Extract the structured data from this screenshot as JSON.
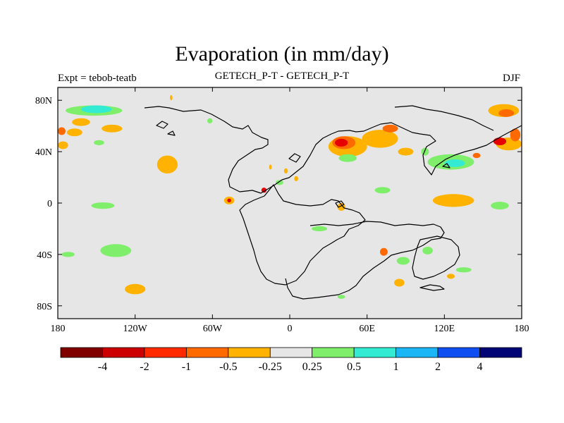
{
  "title": "Evaporation (in mm/day)",
  "subtitle_left": "Expt = tebob-teatb",
  "subtitle_center": "GETECH_P-T - GETECH_P-T",
  "subtitle_right": "DJF",
  "map": {
    "lon_range": [
      -180,
      180
    ],
    "lat_range": [
      -90,
      90
    ],
    "background_color": "#e6e6e6",
    "x_ticks": [
      {
        "value": -180,
        "label": "180"
      },
      {
        "value": -120,
        "label": "120W"
      },
      {
        "value": -60,
        "label": "60W"
      },
      {
        "value": 0,
        "label": "0"
      },
      {
        "value": 60,
        "label": "60E"
      },
      {
        "value": 120,
        "label": "120E"
      },
      {
        "value": 180,
        "label": "180"
      }
    ],
    "y_ticks": [
      {
        "value": 80,
        "label": "80N"
      },
      {
        "value": 40,
        "label": "40N"
      },
      {
        "value": 0,
        "label": "0"
      },
      {
        "value": -40,
        "label": "40S"
      },
      {
        "value": -80,
        "label": "80S"
      }
    ],
    "anomalies": [
      {
        "lon": -152,
        "lat": 72,
        "rx": 22,
        "ry": 4,
        "color": "#7fee6a"
      },
      {
        "lon": -150,
        "lat": 73,
        "rx": 12,
        "ry": 3,
        "color": "#33ebd2"
      },
      {
        "lon": -162,
        "lat": 63,
        "rx": 7,
        "ry": 3,
        "color": "#ffb300"
      },
      {
        "lon": -138,
        "lat": 58,
        "rx": 8,
        "ry": 3,
        "color": "#ffb300"
      },
      {
        "lon": -177,
        "lat": 56,
        "rx": 3,
        "ry": 3,
        "color": "#ff6a00"
      },
      {
        "lon": -167,
        "lat": 55,
        "rx": 6,
        "ry": 3,
        "color": "#ffb300"
      },
      {
        "lon": -148,
        "lat": 47,
        "rx": 4,
        "ry": 2,
        "color": "#7fee6a"
      },
      {
        "lon": -176,
        "lat": 45,
        "rx": 4,
        "ry": 3,
        "color": "#ffb300"
      },
      {
        "lon": -95,
        "lat": 30,
        "rx": 8,
        "ry": 7,
        "color": "#ffb300"
      },
      {
        "lon": -62,
        "lat": 64,
        "rx": 2,
        "ry": 2,
        "color": "#7fee6a"
      },
      {
        "lon": -92,
        "lat": 82,
        "rx": 1,
        "ry": 2,
        "color": "#ffb300"
      },
      {
        "lon": -47,
        "lat": 2,
        "rx": 4,
        "ry": 3,
        "color": "#ffb300"
      },
      {
        "lon": -47,
        "lat": 2,
        "rx": 1.5,
        "ry": 1.5,
        "color": "#e60000"
      },
      {
        "lon": -20,
        "lat": 10,
        "rx": 2,
        "ry": 2,
        "color": "#e60000"
      },
      {
        "lon": -15,
        "lat": 28,
        "rx": 1,
        "ry": 2,
        "color": "#ffb300"
      },
      {
        "lon": -8,
        "lat": 16,
        "rx": 3,
        "ry": 2,
        "color": "#7fee6a"
      },
      {
        "lon": -3,
        "lat": 25,
        "rx": 1.5,
        "ry": 2,
        "color": "#ffb300"
      },
      {
        "lon": 5,
        "lat": 19,
        "rx": 1.5,
        "ry": 2,
        "color": "#ffb300"
      },
      {
        "lon": 45,
        "lat": 44,
        "rx": 15,
        "ry": 8,
        "color": "#ffb300"
      },
      {
        "lon": 42,
        "lat": 47,
        "rx": 9,
        "ry": 5,
        "color": "#ff6a00"
      },
      {
        "lon": 40,
        "lat": 47,
        "rx": 5,
        "ry": 3,
        "color": "#e60000"
      },
      {
        "lon": 45,
        "lat": 35,
        "rx": 7,
        "ry": 3,
        "color": "#7fee6a"
      },
      {
        "lon": 70,
        "lat": 50,
        "rx": 14,
        "ry": 7,
        "color": "#ffb300"
      },
      {
        "lon": 78,
        "lat": 58,
        "rx": 6,
        "ry": 3,
        "color": "#ff6a00"
      },
      {
        "lon": 90,
        "lat": 40,
        "rx": 6,
        "ry": 3,
        "color": "#ffb300"
      },
      {
        "lon": 105,
        "lat": 40,
        "rx": 3,
        "ry": 3,
        "color": "#7fee6a"
      },
      {
        "lon": 125,
        "lat": 32,
        "rx": 18,
        "ry": 6,
        "color": "#7fee6a"
      },
      {
        "lon": 128,
        "lat": 31,
        "rx": 8,
        "ry": 3,
        "color": "#33ebd2"
      },
      {
        "lon": 145,
        "lat": 37,
        "rx": 3,
        "ry": 2,
        "color": "#ff6a00"
      },
      {
        "lon": 166,
        "lat": 72,
        "rx": 12,
        "ry": 5,
        "color": "#ffb300"
      },
      {
        "lon": 168,
        "lat": 70,
        "rx": 6,
        "ry": 3,
        "color": "#ff6a00"
      },
      {
        "lon": 170,
        "lat": 46,
        "rx": 10,
        "ry": 5,
        "color": "#ffb300"
      },
      {
        "lon": 163,
        "lat": 48,
        "rx": 5,
        "ry": 3,
        "color": "#e60000"
      },
      {
        "lon": 175,
        "lat": 53,
        "rx": 4,
        "ry": 5,
        "color": "#ff6a00"
      },
      {
        "lon": 127,
        "lat": 2,
        "rx": 16,
        "ry": 5,
        "color": "#ffb300"
      },
      {
        "lon": 163,
        "lat": -2,
        "rx": 7,
        "ry": 3,
        "color": "#7fee6a"
      },
      {
        "lon": -145,
        "lat": -2,
        "rx": 9,
        "ry": 2.5,
        "color": "#7fee6a"
      },
      {
        "lon": 40,
        "lat": -3,
        "rx": 3,
        "ry": 3,
        "color": "#ffb300"
      },
      {
        "lon": 72,
        "lat": 10,
        "rx": 6,
        "ry": 2.5,
        "color": "#7fee6a"
      },
      {
        "lon": 23,
        "lat": -20,
        "rx": 6,
        "ry": 2,
        "color": "#7fee6a"
      },
      {
        "lon": 73,
        "lat": -38,
        "rx": 3,
        "ry": 3,
        "color": "#ff6a00"
      },
      {
        "lon": 88,
        "lat": -45,
        "rx": 5,
        "ry": 3,
        "color": "#7fee6a"
      },
      {
        "lon": 107,
        "lat": -37,
        "rx": 4,
        "ry": 3,
        "color": "#7fee6a"
      },
      {
        "lon": 85,
        "lat": -62,
        "rx": 4,
        "ry": 3,
        "color": "#ffb300"
      },
      {
        "lon": 135,
        "lat": -52,
        "rx": 6,
        "ry": 2,
        "color": "#7fee6a"
      },
      {
        "lon": -135,
        "lat": -37,
        "rx": 12,
        "ry": 5,
        "color": "#7fee6a"
      },
      {
        "lon": -172,
        "lat": -40,
        "rx": 5,
        "ry": 2,
        "color": "#7fee6a"
      },
      {
        "lon": -120,
        "lat": -67,
        "rx": 8,
        "ry": 4,
        "color": "#ffb300"
      },
      {
        "lon": 40,
        "lat": -73,
        "rx": 3,
        "ry": 1.5,
        "color": "#7fee6a"
      },
      {
        "lon": 125,
        "lat": -57,
        "rx": 3,
        "ry": 2,
        "color": "#ffb300"
      }
    ]
  },
  "colorbar": {
    "colors": [
      "#800000",
      "#cc0000",
      "#ff2a00",
      "#ff6a00",
      "#ffb300",
      "#e6e6e6",
      "#7fee6a",
      "#33ebd2",
      "#1ab6f5",
      "#0f4ff2",
      "#020575"
    ],
    "labels": [
      "-4",
      "-2",
      "-1",
      "-0.5",
      "-0.25",
      "0.25",
      "0.5",
      "1",
      "2",
      "4"
    ]
  }
}
